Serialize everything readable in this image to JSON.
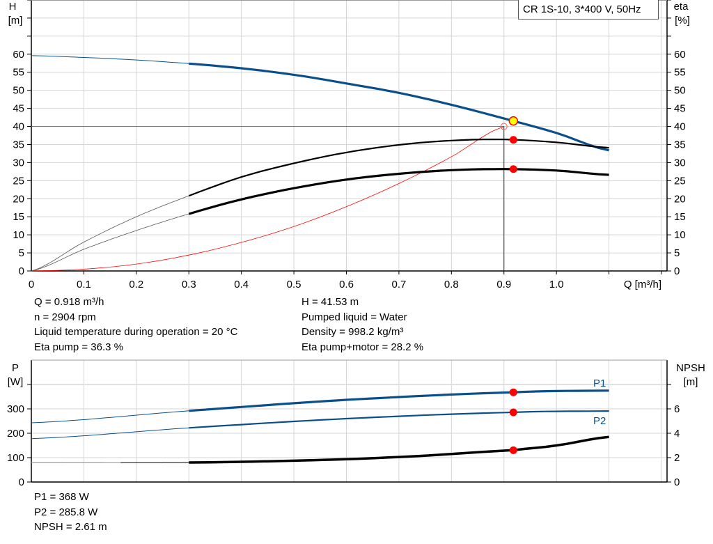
{
  "chart_data": [
    {
      "type": "line",
      "title": "CR 1S-10, 3*400 V, 50Hz",
      "xlabel": "Q [m³/h]",
      "ylabel_left": [
        "H",
        "[m]"
      ],
      "ylabel_right": [
        "eta",
        "[%]"
      ],
      "xlim": [
        0,
        1.2
      ],
      "ylim": [
        0,
        75
      ],
      "x_ticks": [
        "0",
        "0.1",
        "0.2",
        "0.3",
        "0.4",
        "0.5",
        "0.6",
        "0.7",
        "0.8",
        "0.9",
        "1.0"
      ],
      "y_ticks": [
        "0",
        "5",
        "10",
        "15",
        "20",
        "25",
        "30",
        "35",
        "40",
        "45",
        "50",
        "55",
        "60"
      ],
      "grid": true,
      "series": [
        {
          "id": "H",
          "color": "#0b4f8a",
          "x": [
            0,
            0.1,
            0.2,
            0.3,
            0.4,
            0.5,
            0.6,
            0.7,
            0.8,
            0.9,
            1.0,
            1.1
          ],
          "y": [
            59.6,
            59.1,
            58.4,
            57.4,
            56.1,
            54.3,
            51.9,
            49.3,
            46.0,
            42.2,
            38.2,
            33.4
          ]
        },
        {
          "id": "eta_pump",
          "color": "#000000",
          "x": [
            0,
            0.1,
            0.2,
            0.3,
            0.4,
            0.5,
            0.6,
            0.7,
            0.8,
            0.9,
            1.0,
            1.1
          ],
          "y": [
            0,
            8.0,
            15.0,
            20.8,
            26.0,
            29.8,
            32.8,
            34.9,
            36.1,
            36.4,
            35.6,
            34.1
          ]
        },
        {
          "id": "eta_pump_motor",
          "color": "#000000",
          "x": [
            0,
            0.1,
            0.2,
            0.3,
            0.4,
            0.5,
            0.6,
            0.7,
            0.8,
            0.9,
            1.0,
            1.1
          ],
          "y": [
            0,
            6.0,
            11.2,
            15.8,
            19.8,
            22.9,
            25.3,
            26.9,
            27.9,
            28.2,
            27.8,
            26.6
          ]
        },
        {
          "id": "system_curve",
          "color": "#ff0000",
          "x": [
            0,
            0.1,
            0.2,
            0.3,
            0.4,
            0.5,
            0.6,
            0.7,
            0.8,
            0.9
          ],
          "y": [
            0,
            0.5,
            1.9,
            4.4,
            7.9,
            12.3,
            17.8,
            24.2,
            31.6,
            40.0
          ]
        }
      ],
      "duty_point": {
        "Q": 0.9,
        "H": 40
      },
      "operating_point": {
        "Q": 0.918,
        "H": 41.53,
        "eta_pump": 36.3,
        "eta_pump_motor": 28.2
      }
    },
    {
      "type": "line",
      "ylabel_left": [
        "P",
        "[W]"
      ],
      "ylabel_right": [
        "NPSH",
        "[m]"
      ],
      "xlim": [
        0,
        1.2
      ],
      "ylim": [
        0,
        500
      ],
      "ylim_right": [
        0,
        10
      ],
      "y_ticks": [
        "0",
        "100",
        "200",
        "300"
      ],
      "y_ticks_right": [
        "0",
        "2",
        "4",
        "6"
      ],
      "grid": true,
      "series": [
        {
          "id": "P1",
          "name": "P1",
          "color": "#0b4f8a",
          "x": [
            0,
            0.3,
            0.6,
            0.918,
            1.1
          ],
          "y": [
            243,
            292,
            337,
            368,
            375
          ]
        },
        {
          "id": "P2",
          "name": "P2",
          "color": "#0b4f8a",
          "x": [
            0,
            0.3,
            0.6,
            0.918,
            1.1
          ],
          "y": [
            178,
            222,
            260,
            285.8,
            291
          ]
        },
        {
          "id": "NPSH",
          "color": "#000000",
          "axis": "right",
          "x": [
            0,
            0.3,
            0.5,
            0.7,
            0.918,
            1.0,
            1.1
          ],
          "y": [
            1.6,
            1.6,
            1.75,
            2.05,
            2.61,
            3.0,
            3.7
          ]
        }
      ],
      "operating_point": {
        "Q": 0.918,
        "P1": 368,
        "P2": 285.8,
        "NPSH": 2.61
      }
    }
  ],
  "readouts_top": {
    "left": [
      "Q = 0.918 m³/h",
      "n = 2904 rpm",
      "Liquid temperature during operation = 20 °C",
      "Eta pump = 36.3 %"
    ],
    "right": [
      "H = 41.53 m",
      "Pumped liquid = Water",
      "Density = 998.2 kg/m³",
      "Eta pump+motor = 28.2 %"
    ]
  },
  "readouts_bottom": [
    "P1 = 368 W",
    "P2 = 285.8 W",
    "NPSH = 2.61 m"
  ]
}
